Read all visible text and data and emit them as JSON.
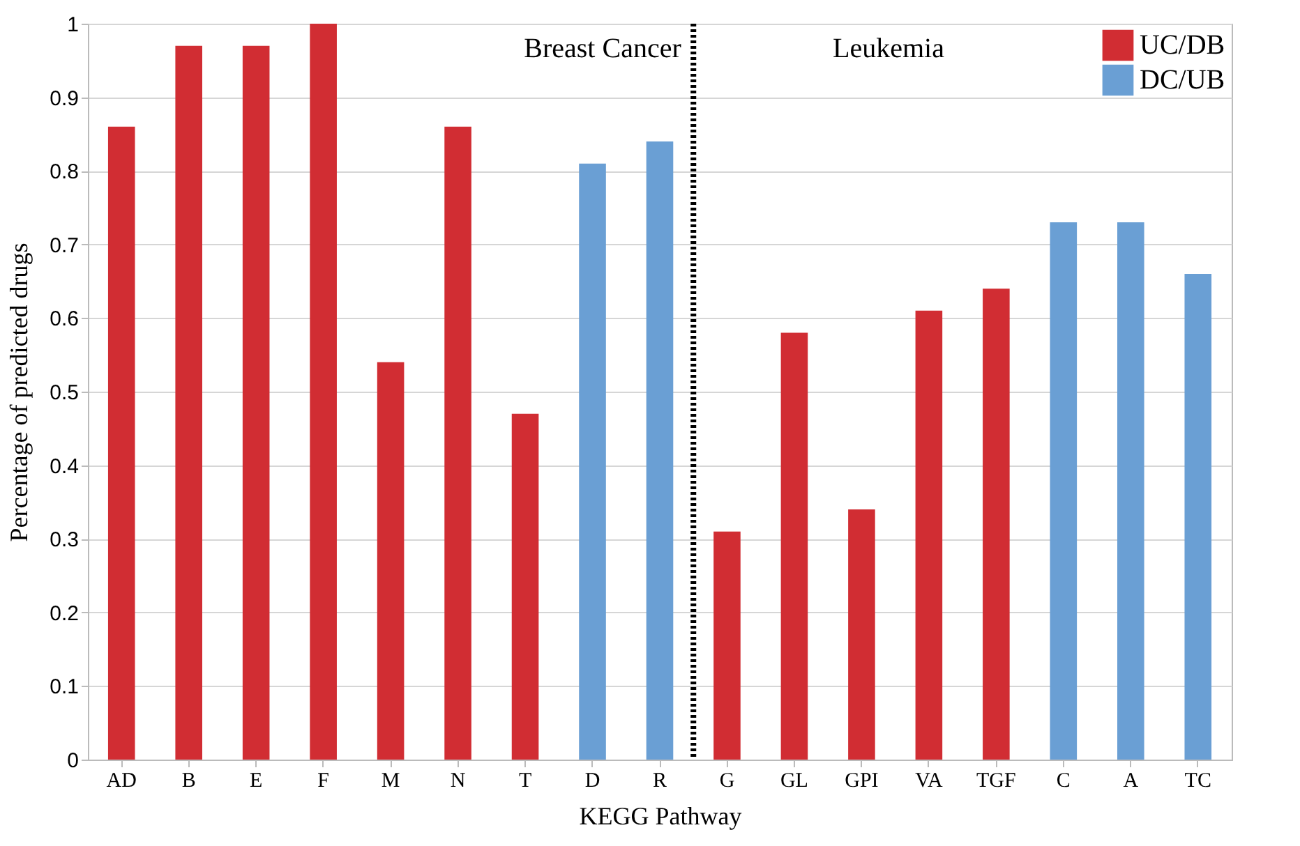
{
  "chart_data": {
    "type": "bar",
    "xlabel": "KEGG Pathway",
    "ylabel": "Percentage of predicted drugs",
    "categories": [
      "AD",
      "B",
      "E",
      "F",
      "M",
      "N",
      "T",
      "D",
      "R",
      "G",
      "GL",
      "GPI",
      "VA",
      "TGF",
      "C",
      "A",
      "TC"
    ],
    "series": [
      {
        "name": "UC/DB",
        "color": "#d12d33",
        "values": [
          0.86,
          0.97,
          0.97,
          1.0,
          0.54,
          0.86,
          0.47,
          null,
          null,
          0.31,
          0.58,
          0.34,
          0.61,
          0.64,
          null,
          null,
          null
        ]
      },
      {
        "name": "DC/UB",
        "color": "#6a9fd4",
        "values": [
          null,
          null,
          null,
          null,
          null,
          null,
          null,
          0.81,
          0.84,
          null,
          null,
          null,
          null,
          null,
          0.73,
          0.73,
          0.66
        ]
      }
    ],
    "ylim": [
      0,
      1
    ],
    "yticks": [
      0,
      0.1,
      0.2,
      0.3,
      0.4,
      0.5,
      0.6,
      0.7,
      0.8,
      0.9,
      1
    ],
    "grid": "y",
    "legend": "top right",
    "ref_lines": [
      {
        "axis": "x",
        "value": "G",
        "color": "#000000",
        "line_style": "dotted"
      }
    ],
    "annotations": [
      "Breast Cancer",
      "Leukemia"
    ]
  }
}
